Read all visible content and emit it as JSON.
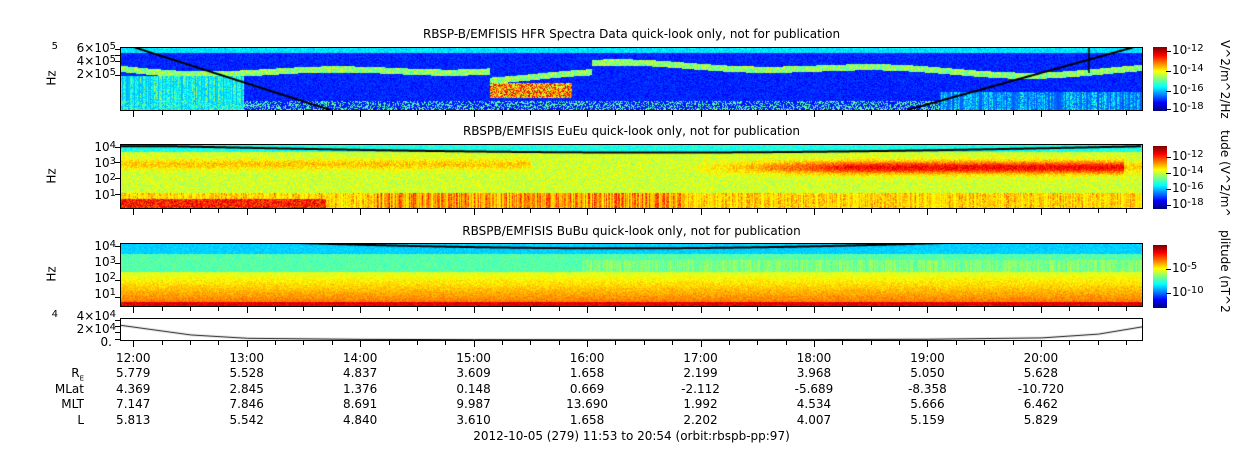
{
  "chart_data": {
    "type": "heatmap",
    "time_range": {
      "start": "11:53",
      "end": "20:54"
    },
    "x_ticks": [
      "12:00",
      "13:00",
      "14:00",
      "15:00",
      "16:00",
      "17:00",
      "18:00",
      "19:00",
      "20:00"
    ],
    "panels": [
      {
        "id": "hfr",
        "title": "RBSP-B/EMFISIS  HFR Spectra Data quick-look only, not for publication",
        "ylabel": "Hz",
        "yticks": [
          {
            "base": "",
            "exp": "5"
          },
          {
            "base": "6×10",
            "exp": "5"
          },
          {
            "base": "4×10",
            "exp": "5"
          },
          {
            "base": "2×10",
            "exp": "5"
          }
        ],
        "colorbar": {
          "label": "V^2/m^2/Hz",
          "ticks": [
            {
              "base": "10",
              "exp": "-12"
            },
            {
              "base": "10",
              "exp": "-14"
            },
            {
              "base": "10",
              "exp": "-16"
            },
            {
              "base": "10",
              "exp": "-18"
            }
          ],
          "range_log10": [
            -18.3,
            -11.8
          ]
        }
      },
      {
        "id": "eueu",
        "title": "RBSPB/EMFISIS  EuEu quick-look only, not for publication",
        "ylabel": "Hz",
        "yticks": [
          {
            "base": "10",
            "exp": "4"
          },
          {
            "base": "10",
            "exp": "3"
          },
          {
            "base": "10",
            "exp": "2"
          },
          {
            "base": "10",
            "exp": "1"
          }
        ],
        "colorbar": {
          "label": "tude (V^2/m^",
          "ticks": [
            {
              "base": "10",
              "exp": "-12"
            },
            {
              "base": "10",
              "exp": "-14"
            },
            {
              "base": "10",
              "exp": "-16"
            },
            {
              "base": "10",
              "exp": "-18"
            }
          ],
          "range_log10": [
            -18.5,
            -10.5
          ]
        }
      },
      {
        "id": "bubu",
        "title": "RBSPB/EMFISIS  BuBu quick-look only, not for publication",
        "ylabel": "Hz",
        "yticks": [
          {
            "base": "10",
            "exp": "4"
          },
          {
            "base": "10",
            "exp": "3"
          },
          {
            "base": "10",
            "exp": "2"
          },
          {
            "base": "10",
            "exp": "1"
          }
        ],
        "colorbar": {
          "label": "plitude (nT^2",
          "ticks": [
            {
              "base": "10",
              "exp": "-5"
            },
            {
              "base": "10",
              "exp": "-10"
            }
          ],
          "range_log10": [
            -12,
            0
          ]
        }
      },
      {
        "id": "line",
        "type": "line",
        "yticks": [
          {
            "base": "",
            "exp": "4"
          },
          {
            "base": "4×10",
            "exp": "4"
          },
          {
            "base": "2×10",
            "exp": "4"
          },
          {
            "base": "0.",
            "exp": ""
          }
        ],
        "ylim": [
          0,
          50000
        ],
        "x_hours": [
          11.88,
          12.5,
          13,
          14,
          15,
          16,
          17,
          18,
          19,
          20,
          20.5,
          20.9
        ],
        "y": [
          35000,
          12000,
          4000,
          1500,
          800,
          600,
          700,
          1000,
          1800,
          5000,
          14000,
          32000
        ]
      }
    ],
    "ephemeris": {
      "row_labels": [
        {
          "base": "R",
          "sub": "E"
        },
        {
          "base": "MLat",
          "sub": ""
        },
        {
          "base": "MLT",
          "sub": ""
        },
        {
          "base": "L",
          "sub": ""
        }
      ],
      "rows": [
        [
          "5.779",
          "5.528",
          "4.837",
          "3.609",
          "1.658",
          "2.199",
          "3.968",
          "5.050",
          "5.628"
        ],
        [
          "4.369",
          "2.845",
          "1.376",
          "0.148",
          "0.669",
          "-2.112",
          "-5.689",
          "-8.358",
          "-10.720"
        ],
        [
          "7.147",
          "7.846",
          "8.691",
          "9.987",
          "13.690",
          "1.992",
          "4.534",
          "5.666",
          "6.462"
        ],
        [
          "5.813",
          "5.542",
          "4.840",
          "3.610",
          "1.658",
          "2.202",
          "4.007",
          "5.159",
          "5.829"
        ]
      ]
    },
    "footer": "2012-10-05 (279) 11:53 to 20:54 (orbit:rbspb-pp:97)"
  }
}
